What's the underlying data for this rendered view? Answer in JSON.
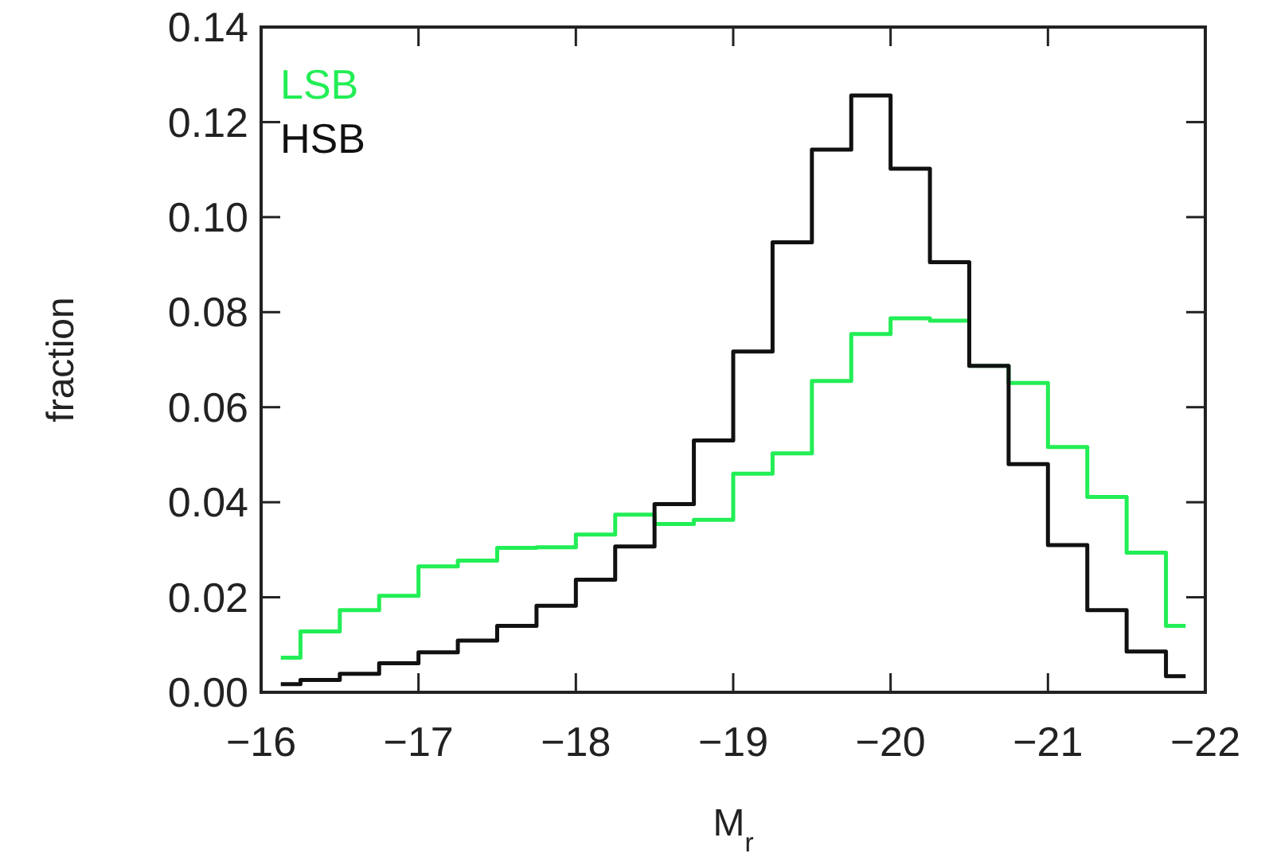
{
  "chart_data": {
    "type": "histogram",
    "xlabel": "M$_{r}$",
    "ylabel": "fraction",
    "bins": [
      -16.125,
      -16.25,
      -16.5,
      -16.75,
      -17,
      -17.25,
      -17.5,
      -17.75,
      -18,
      -18.25,
      -18.5,
      -18.75,
      -19,
      -19.25,
      -19.5,
      -19.75,
      -20,
      -20.25,
      -20.5,
      -20.75,
      -21,
      -21.25,
      -21.5,
      -21.75,
      -21.875
    ],
    "series": [
      {
        "name": "LSB",
        "color": "#22ee55",
        "values": [
          0.0073,
          0.0128,
          0.0173,
          0.0203,
          0.0265,
          0.0277,
          0.0304,
          0.0305,
          0.0332,
          0.0374,
          0.0354,
          0.0363,
          0.046,
          0.0503,
          0.0655,
          0.0754,
          0.0787,
          0.0782,
          0.0687,
          0.0651,
          0.0516,
          0.0411,
          0.0294,
          0.014
        ]
      },
      {
        "name": "HSB",
        "color": "#111111",
        "values": [
          0.0017,
          0.0026,
          0.0039,
          0.0061,
          0.0084,
          0.0109,
          0.014,
          0.0182,
          0.0237,
          0.0307,
          0.0396,
          0.053,
          0.0717,
          0.0947,
          0.1142,
          0.1256,
          0.1102,
          0.0905,
          0.0687,
          0.048,
          0.031,
          0.0173,
          0.0086,
          0.0034
        ]
      }
    ],
    "xlim": [
      -16,
      -22
    ],
    "xticks": [
      {
        "value": -16,
        "label": "−16"
      },
      {
        "value": -17,
        "label": "−17"
      },
      {
        "value": -18,
        "label": "−18"
      },
      {
        "value": -19,
        "label": "−19"
      },
      {
        "value": -20,
        "label": "−20"
      },
      {
        "value": -21,
        "label": "−21"
      },
      {
        "value": -22,
        "label": "−22"
      }
    ],
    "ylim": [
      0,
      0.14
    ],
    "yticks": [
      {
        "value": 0,
        "label": "0.00"
      },
      {
        "value": 0.02,
        "label": "0.02"
      },
      {
        "value": 0.04,
        "label": "0.04"
      },
      {
        "value": 0.06,
        "label": "0.06"
      },
      {
        "value": 0.08,
        "label": "0.08"
      },
      {
        "value": 0.1,
        "label": "0.10"
      },
      {
        "value": 0.12,
        "label": "0.12"
      },
      {
        "value": 0.14,
        "label": "0.14"
      }
    ],
    "legend": "top left",
    "grid": false
  }
}
